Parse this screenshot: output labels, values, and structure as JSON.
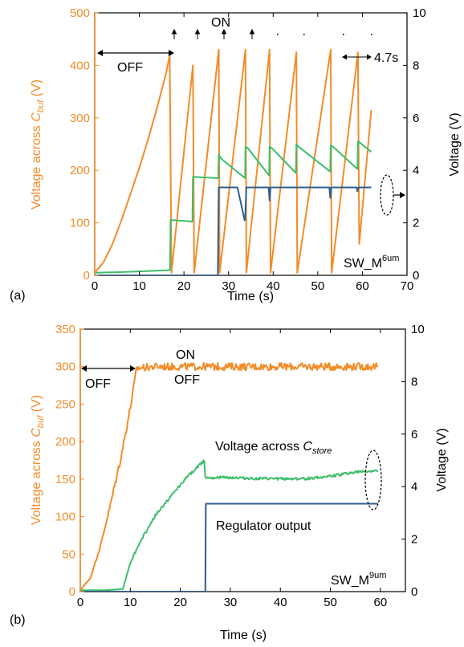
{
  "colors": {
    "orange": "#F28C28",
    "green": "#3DBE6A",
    "blue": "#2E5E8C",
    "black": "#000000"
  },
  "chart_data": [
    {
      "id": "a",
      "type": "line",
      "panel_label": "(a)",
      "xlabel": "Time (s)",
      "ylabel_left": {
        "prefix": "Voltage across ",
        "sym": "C",
        "sub": "buf",
        "suffix": " (V)"
      },
      "ylabel_right": "Voltage (V)",
      "xlim": [
        0,
        70
      ],
      "ylim_left": [
        0,
        500
      ],
      "ylim_right": [
        0,
        10
      ],
      "xticks": [
        0,
        10,
        20,
        30,
        40,
        50,
        60,
        70
      ],
      "yticks_left": [
        0,
        100,
        200,
        300,
        400,
        500
      ],
      "yticks_right": [
        0,
        2,
        4,
        6,
        8,
        10
      ],
      "tag": {
        "base": "SW_M",
        "sup": "6um"
      },
      "annotations": {
        "off": "OFF",
        "on": "ON",
        "period": "4.7s"
      },
      "series": [
        {
          "axis": "left",
          "color": "orange",
          "x": [
            0,
            2,
            4,
            6,
            8,
            10,
            12,
            14,
            16,
            16.8,
            17.2,
            22.0,
            22.3,
            27.8,
            28.0,
            33.8,
            34.0,
            39.2,
            39.4,
            45.2,
            45.4,
            52.9,
            53.1,
            59.0,
            59.3,
            62.0
          ],
          "y": [
            5,
            25,
            60,
            105,
            155,
            205,
            260,
            320,
            385,
            420,
            5,
            400,
            5,
            430,
            5,
            430,
            5,
            430,
            5,
            425,
            5,
            430,
            5,
            425,
            60,
            315
          ]
        },
        {
          "axis": "right",
          "color": "green",
          "x": [
            0,
            5,
            10,
            16.9,
            17.0,
            17.5,
            21.9,
            22.0,
            22.4,
            27.7,
            27.8,
            28.3,
            33.7,
            33.8,
            34.3,
            39.1,
            39.2,
            39.7,
            45.1,
            45.2,
            45.7,
            52.8,
            52.9,
            53.4,
            58.9,
            59.0,
            59.5,
            62
          ],
          "y": [
            0.1,
            0.12,
            0.15,
            0.2,
            2.1,
            2.1,
            2.05,
            3.75,
            3.75,
            3.7,
            4.6,
            4.45,
            3.7,
            4.9,
            4.85,
            3.8,
            4.9,
            4.85,
            3.9,
            5.0,
            4.9,
            3.95,
            4.95,
            4.9,
            4.05,
            5.1,
            5.05,
            4.7
          ]
        },
        {
          "axis": "right",
          "color": "blue",
          "x": [
            0,
            27.6,
            27.8,
            32.0,
            33.6,
            33.7,
            34.0,
            39.0,
            39.2,
            39.4,
            52.6,
            52.8,
            53.0,
            58.7,
            58.9,
            59.1,
            62
          ],
          "y": [
            0,
            0,
            3.35,
            3.35,
            2.1,
            2.1,
            3.35,
            3.35,
            2.85,
            3.35,
            3.35,
            2.95,
            3.35,
            3.35,
            3.2,
            3.35,
            3.35
          ]
        }
      ]
    },
    {
      "id": "b",
      "type": "line",
      "panel_label": "(b)",
      "xlabel": "Time (s)",
      "ylabel_left": {
        "prefix": "Voltage across ",
        "sym": "C",
        "sub": "buf",
        "suffix": " (V)"
      },
      "ylabel_right": "Voltage (V)",
      "xlim": [
        0,
        65
      ],
      "ylim_left": [
        0,
        350
      ],
      "ylim_right": [
        0,
        10
      ],
      "xticks": [
        0,
        10,
        20,
        30,
        40,
        50,
        60
      ],
      "yticks_left": [
        0,
        50,
        100,
        150,
        200,
        250,
        300,
        350
      ],
      "yticks_right": [
        0,
        2,
        4,
        6,
        8,
        10
      ],
      "tag": {
        "base": "SW_M",
        "sup": "9um"
      },
      "annotations": {
        "off": "OFF",
        "on": "ON",
        "off2": "OFF",
        "cstore": {
          "prefix": "Voltage across ",
          "sym": "C",
          "sub": "store"
        },
        "regulator": "Regulator output"
      },
      "series": [
        {
          "axis": "left",
          "color": "orange",
          "noise": 5,
          "x": [
            0,
            2,
            4,
            6,
            8,
            10,
            11.3,
            15,
            20,
            25,
            30,
            35,
            40,
            45,
            50,
            55,
            59.5
          ],
          "y": [
            2,
            18,
            60,
            115,
            175,
            245,
            298,
            300,
            300,
            300,
            300,
            300,
            300,
            300,
            300,
            300,
            300
          ]
        },
        {
          "axis": "right",
          "color": "green",
          "noise": 0.05,
          "x": [
            0,
            5,
            8.5,
            10,
            12,
            15,
            18,
            21,
            24.8,
            25.0,
            30,
            35,
            40,
            45,
            50,
            55,
            59.5
          ],
          "y": [
            0.05,
            0.05,
            0.1,
            1.1,
            1.9,
            2.9,
            3.6,
            4.3,
            5.0,
            4.35,
            4.35,
            4.3,
            4.3,
            4.3,
            4.4,
            4.55,
            4.6
          ]
        },
        {
          "axis": "right",
          "color": "blue",
          "x": [
            0,
            25.0,
            25.1,
            59.5
          ],
          "y": [
            0,
            0,
            3.35,
            3.35
          ]
        }
      ]
    }
  ]
}
